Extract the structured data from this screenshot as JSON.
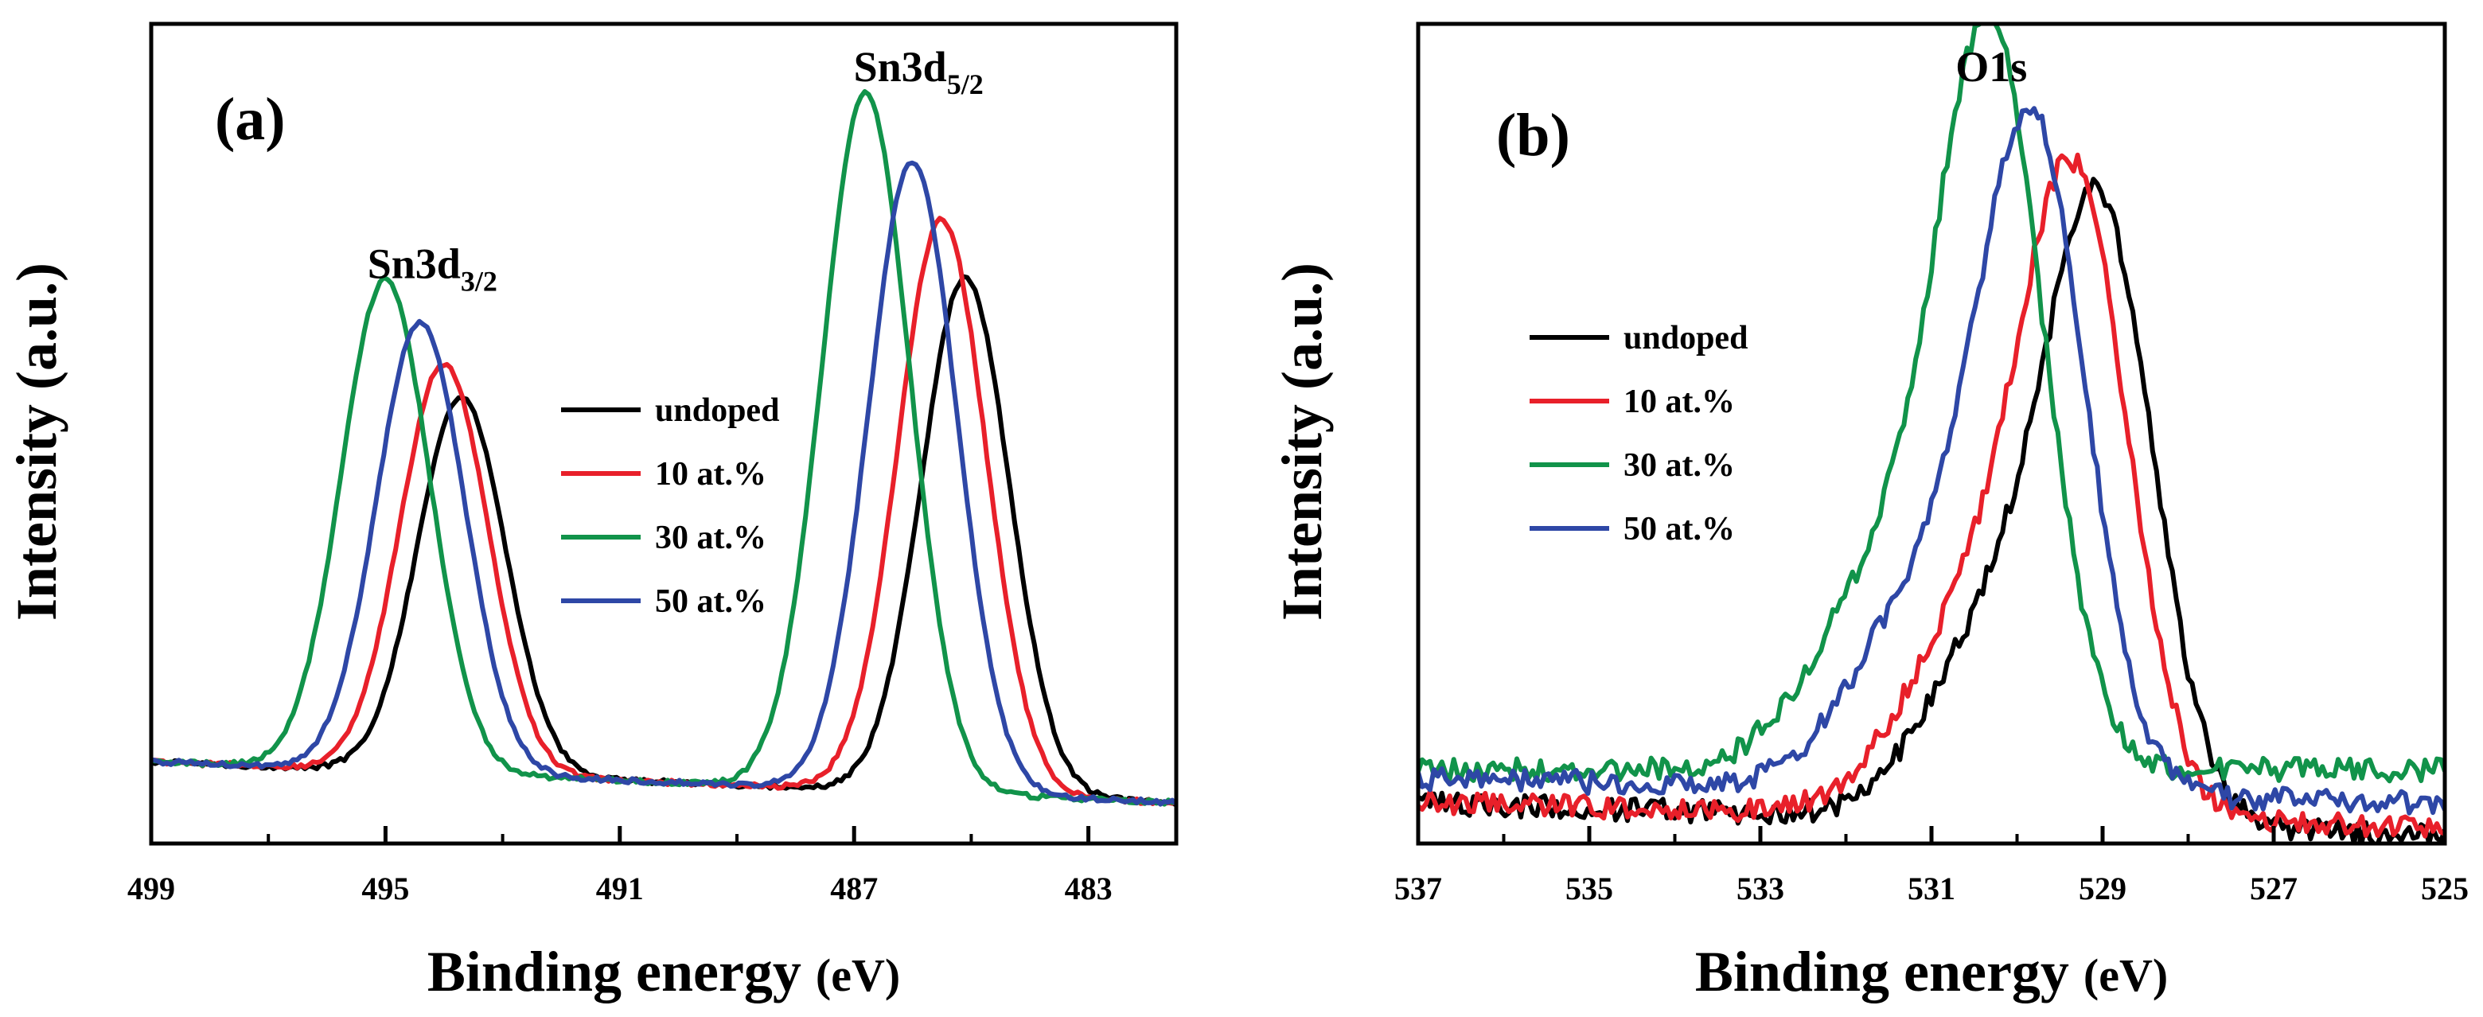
{
  "chart_data": [
    {
      "type": "line",
      "panel_label": "(a)",
      "xlabel_main": "Binding energy",
      "xlabel_unit": "(eV)",
      "ylabel": "Intensity (a.u.)",
      "xlim": [
        499,
        481.5
      ],
      "xticks": [
        499,
        495,
        491,
        487,
        483
      ],
      "yticks": [],
      "legend_position": "center-right",
      "annotations": [
        {
          "base": "Sn3d",
          "sub": "3/2",
          "x": 494.2,
          "y": 0.69
        },
        {
          "base": "Sn3d",
          "sub": "5/2",
          "x": 485.9,
          "y": 0.93
        }
      ],
      "series": [
        {
          "name": "undoped",
          "color": "#000000",
          "baseline_left": 0.1,
          "baseline_right": 0.05,
          "peaks": [
            {
              "center": 493.7,
              "height": 0.46,
              "width": 0.75
            },
            {
              "center": 485.1,
              "height": 0.63,
              "width": 0.75
            }
          ]
        },
        {
          "name": "10 at.%",
          "color": "#e8202a",
          "baseline_left": 0.1,
          "baseline_right": 0.05,
          "peaks": [
            {
              "center": 494.0,
              "height": 0.5,
              "width": 0.75
            },
            {
              "center": 485.5,
              "height": 0.7,
              "width": 0.75
            }
          ]
        },
        {
          "name": "30 at.%",
          "color": "#11934a",
          "baseline_left": 0.1,
          "baseline_right": 0.05,
          "peaks": [
            {
              "center": 495.0,
              "height": 0.6,
              "width": 0.75
            },
            {
              "center": 486.8,
              "height": 0.85,
              "width": 0.75
            }
          ]
        },
        {
          "name": "50 at.%",
          "color": "#2e47a6",
          "baseline_left": 0.1,
          "baseline_right": 0.05,
          "peaks": [
            {
              "center": 494.4,
              "height": 0.55,
              "width": 0.75
            },
            {
              "center": 486.0,
              "height": 0.77,
              "width": 0.75
            }
          ]
        }
      ]
    },
    {
      "type": "line",
      "panel_label": "(b)",
      "xlabel_main": "Binding energy",
      "xlabel_unit": "(eV)",
      "ylabel": "Intensity (a.u.)",
      "xlim": [
        537,
        525
      ],
      "xticks": [
        537,
        535,
        533,
        531,
        529,
        527,
        525
      ],
      "yticks": [],
      "legend_position": "upper-left",
      "annotations": [
        {
          "base": "O1s",
          "sub": "",
          "x": 530.3,
          "y": 0.93
        }
      ],
      "series": [
        {
          "name": "undoped",
          "color": "#000000",
          "baseline_left": 0.05,
          "baseline_right": 0.01,
          "peaks": [
            {
              "center": 529.0,
              "height": 0.69,
              "width": 0.62
            },
            {
              "center": 530.2,
              "height": 0.24,
              "width": 0.8
            }
          ]
        },
        {
          "name": "10 at.%",
          "color": "#e8202a",
          "baseline_left": 0.05,
          "baseline_right": 0.02,
          "peaks": [
            {
              "center": 529.3,
              "height": 0.72,
              "width": 0.62
            },
            {
              "center": 530.5,
              "height": 0.24,
              "width": 0.8
            }
          ]
        },
        {
          "name": "30 at.%",
          "color": "#11934a",
          "baseline_left": 0.09,
          "baseline_right": 0.09,
          "peaks": [
            {
              "center": 530.3,
              "height": 0.86,
              "width": 0.62
            },
            {
              "center": 531.6,
              "height": 0.22,
              "width": 0.8
            }
          ]
        },
        {
          "name": "50 at.%",
          "color": "#2e47a6",
          "baseline_left": 0.08,
          "baseline_right": 0.05,
          "peaks": [
            {
              "center": 529.8,
              "height": 0.77,
              "width": 0.62
            },
            {
              "center": 531.1,
              "height": 0.23,
              "width": 0.8
            }
          ]
        }
      ]
    }
  ]
}
